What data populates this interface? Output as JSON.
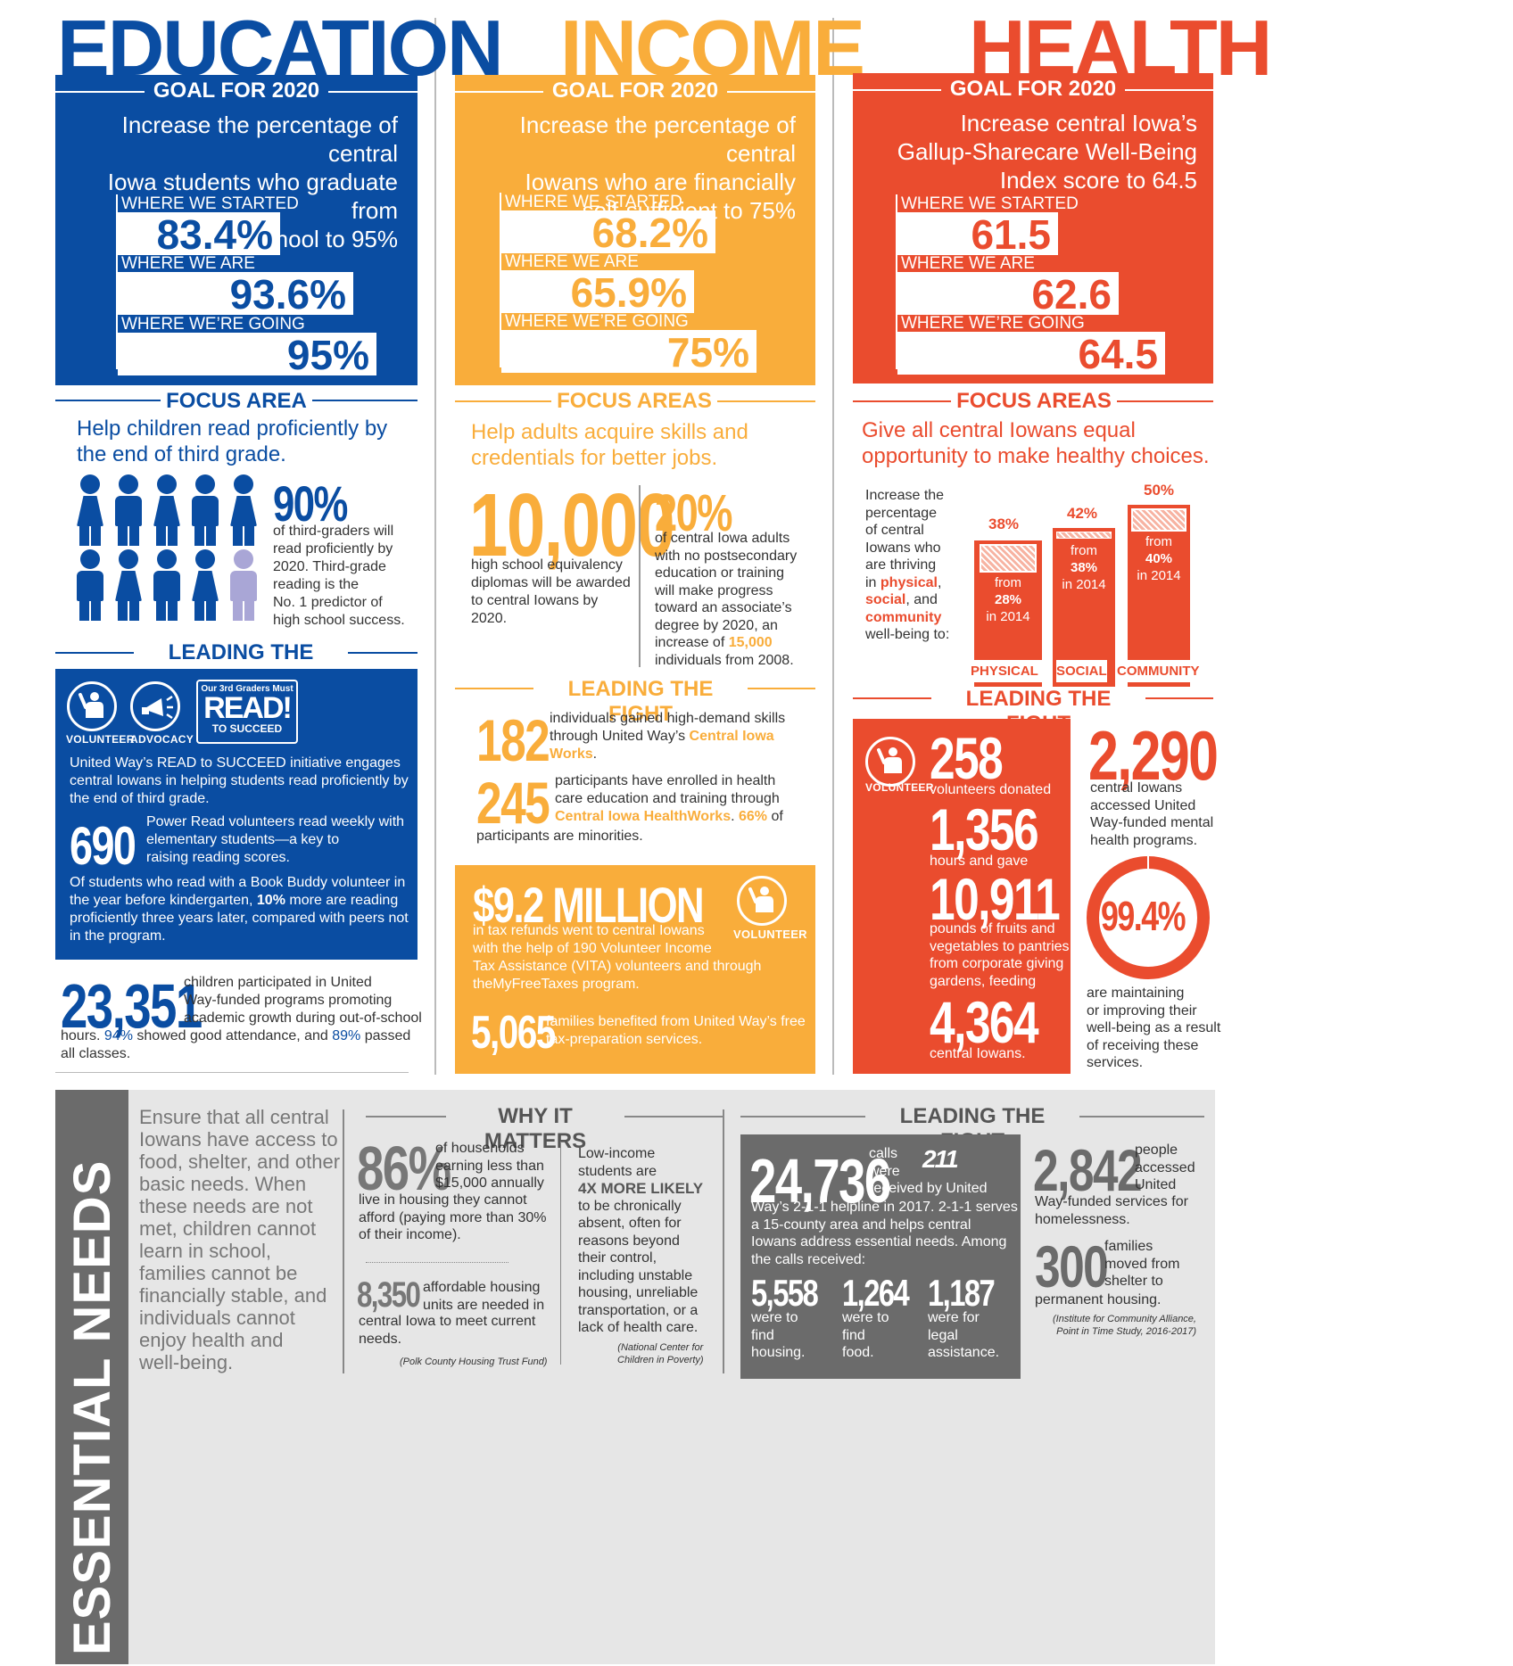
{
  "education": {
    "title": "EDUCATION",
    "goal_label": "GOAL FOR 2020",
    "goal_text": [
      "Increase the percentage of central",
      "Iowa students who graduate from",
      "high school to 95%"
    ],
    "stats": [
      {
        "label": "WHERE WE STARTED",
        "value": "83.4%"
      },
      {
        "label": "WHERE WE ARE",
        "value": "93.6%"
      },
      {
        "label": "WHERE WE’RE GOING",
        "value": "95%"
      }
    ],
    "focus_label": "FOCUS AREA",
    "focus_text": [
      "Help children read proficiently by",
      "the end of third grade."
    ],
    "reading_pct": "90%",
    "reading_text": [
      "of third-graders will",
      "read proficiently by",
      "2020. Third-grade",
      "reading is the",
      "No. 1 predictor of",
      "high school success."
    ],
    "leading_label": "LEADING THE FIGHT",
    "volunteer_caption": "VOLUNTEER",
    "advocacy_caption": "ADVOCACY",
    "read_logo_small": "Our 3rd Graders Must",
    "read_logo_big": "READ!",
    "read_logo_sub": "TO SUCCEED",
    "initiative_text": [
      "United Way’s READ to SUCCEED initiative engages",
      "central Iowans in helping students read proficiently by",
      "the end of third grade."
    ],
    "volunteers_num": "690",
    "volunteers_text": [
      "Power Read volunteers read weekly with",
      "elementary students—a key to",
      "raising reading scores."
    ],
    "buddy_text_1": "Of students who read with a Book Buddy volunteer in",
    "buddy_text_2a": "the year before kindergarten, ",
    "buddy_text_2b": "10%",
    "buddy_text_2c": " more are reading",
    "buddy_text_3": "proficiently three years later, compared with peers not",
    "buddy_text_4": "in the program.",
    "children_num": "23,351",
    "children_text": [
      "children participated in United",
      "Way-funded programs promoting",
      "academic growth during out-of-school"
    ],
    "children_tail_a": "hours. ",
    "children_tail_b": "94%",
    "children_tail_c": " showed good attendance, and ",
    "children_tail_d": "89%",
    "children_tail_e": " passed",
    "children_tail_2": "all classes."
  },
  "income": {
    "title": "INCOME",
    "goal_label": "GOAL FOR 2020",
    "goal_text": [
      "Increase the percentage of central",
      "Iowans who are financially",
      "self-sufficient to 75%"
    ],
    "stats": [
      {
        "label": "WHERE WE STARTED",
        "value": "68.2%"
      },
      {
        "label": "WHERE WE ARE",
        "value": "65.9%"
      },
      {
        "label": "WHERE WE’RE GOING",
        "value": "75%"
      }
    ],
    "focus_label": "FOCUS AREAS",
    "focus_text": [
      "Help adults acquire skills and",
      "credentials for better jobs."
    ],
    "diplomas_num": "10,000",
    "diplomas_text": [
      "high school equivalency",
      "diplomas will be awarded",
      "to central Iowans by",
      "2020."
    ],
    "adults_pct": "20%",
    "adults_text": [
      "of central Iowa adults",
      "with no postsecondary",
      "education or training",
      "will make progress",
      "toward an associate’s",
      "degree by 2020, an"
    ],
    "adults_inc_a": "increase of ",
    "adults_inc_b": "15,000",
    "adults_tail": "individuals from 2008.",
    "leading_label": "LEADING THE FIGHT",
    "skills_num": "182",
    "skills_text_1": "individuals gained high-demand skills",
    "skills_text_2a": "through United Way’s ",
    "skills_text_2b": "Central Iowa",
    "skills_text_3": "Works",
    "hc_num": "245",
    "hc_text_1": "participants have enrolled in health",
    "hc_text_2": "care education and training through",
    "hc_text_3a": "Central Iowa HealthWorks",
    "hc_text_3b": ". ",
    "hc_text_3c": "66%",
    "hc_text_3d": " of",
    "hc_text_4": "participants are minorities.",
    "tax_num": "$9.2 MILLION",
    "tax_text": [
      "in tax refunds went to central Iowans",
      "with the help of 190 Volunteer Income",
      "Tax Assistance (VITA) volunteers and through",
      "theMyFreeTaxes program."
    ],
    "volunteer_caption": "VOLUNTEER",
    "families_num": "5,065",
    "families_text": [
      "families benefited from United Way’s free",
      "tax-preparation services."
    ]
  },
  "health": {
    "title": "HEALTH",
    "goal_label": "GOAL FOR 2020",
    "goal_text": [
      "Increase central Iowa’s",
      "Gallup-Sharecare Well-Being",
      "Index score to 64.5"
    ],
    "stats": [
      {
        "label": "WHERE WE STARTED",
        "value": "61.5"
      },
      {
        "label": "WHERE WE ARE",
        "value": "62.6"
      },
      {
        "label": "WHERE WE’RE GOING",
        "value": "64.5"
      }
    ],
    "focus_label": "FOCUS AREAS",
    "focus_text": [
      "Give all central Iowans equal",
      "opportunity to make healthy choices."
    ],
    "thriving_text": [
      "Increase the",
      "percentage",
      "of central",
      "Iowans who",
      "are thriving"
    ],
    "thriving_in": "in ",
    "thriving_physical": "physical",
    "thriving_social": "social",
    "thriving_and": ", and",
    "thriving_community": "community",
    "thriving_tail": "well-being to:",
    "bars": [
      {
        "name": "PHYSICAL",
        "target": "38%",
        "from_label": "from",
        "from_value": "28%",
        "year": "in 2014"
      },
      {
        "name": "SOCIAL",
        "target": "42%",
        "from_label": "from",
        "from_value": "38%",
        "year": "in 2014"
      },
      {
        "name": "COMMUNITY",
        "target": "50%",
        "from_label": "from",
        "from_value": "40%",
        "year": "in 2014"
      }
    ],
    "leading_label": "LEADING THE FIGHT",
    "volunteer_caption": "VOLUNTEER",
    "vol_num": "258",
    "vol_text": "volunteers donated",
    "hours_num": "1,356",
    "hours_text": "hours and gave",
    "pounds_num": "10,911",
    "pounds_text": [
      "pounds of fruits and",
      "vegetables to pantries",
      "from corporate giving",
      "gardens, feeding"
    ],
    "fed_num": "4,364",
    "fed_text": "central Iowans.",
    "mental_num": "2,290",
    "mental_text": [
      "central Iowans",
      "accessed United",
      "Way-funded mental",
      "health programs."
    ],
    "ring_value": "99.4%",
    "ring_text": [
      "are maintaining",
      "or improving their",
      "well-being as a result",
      "of receiving these",
      "services."
    ]
  },
  "essential": {
    "title": "ESSENTIAL NEEDS",
    "intro": [
      "Ensure that all central",
      "Iowans have access to",
      "food, shelter, and other",
      "basic needs. When",
      "these needs are not",
      "met, children cannot",
      "learn in school,",
      "families cannot be",
      "financially stable, and",
      "individuals cannot",
      "enjoy health and",
      "well-being."
    ],
    "why_label": "WHY IT MATTERS",
    "house_pct": "86%",
    "house_text_a": [
      "of households",
      "earning less than",
      "$15,000 annually"
    ],
    "house_text_b": [
      "live in housing they cannot",
      "afford (paying more than 30%",
      "of their income)."
    ],
    "units_num": "8,350",
    "units_text_a": [
      "affordable housing",
      "units are needed in"
    ],
    "units_text_b": [
      "central Iowa to meet current",
      "needs."
    ],
    "units_source": "(Polk County Housing Trust Fund)",
    "lowinc_text_a": [
      "Low-income",
      "students are"
    ],
    "lowinc_bold": "4X MORE LIKELY",
    "lowinc_text_b": [
      "to be chronically",
      "absent, often for",
      "reasons beyond",
      "their control,",
      "including unstable",
      "housing, unreliable",
      "transportation, or a",
      "lack of health care."
    ],
    "lowinc_source": [
      "(National Center for",
      "Children in Poverty)"
    ],
    "leading_label": "LEADING THE FIGHT",
    "calls_num": "24,736",
    "calls_text_a": [
      "calls",
      "were",
      "received by United"
    ],
    "calls_logo": "211",
    "calls_text_b": [
      "Way’s 2-1-1 helpline in 2017. 2-1-1 serves",
      "a 15-county area and helps central",
      "Iowans address essential needs. Among",
      "the calls received:"
    ],
    "sub": [
      {
        "num": "5,558",
        "text": [
          "were to",
          "find",
          "housing."
        ]
      },
      {
        "num": "1,264",
        "text": [
          "were to",
          "find",
          "food."
        ]
      },
      {
        "num": "1,187",
        "text": [
          "were for",
          "legal",
          "assistance."
        ]
      }
    ],
    "homeless_num": "2,842",
    "homeless_text_a": [
      "people",
      "accessed",
      "United"
    ],
    "homeless_text_b": [
      "Way-funded services for",
      "homelessness."
    ],
    "moved_num": "300",
    "moved_text_a": [
      "families",
      "moved from",
      "shelter to"
    ],
    "moved_text_b": "permanent housing.",
    "moved_source": [
      "(Institute for Community Alliance,",
      "Point in Time Study, 2016-2017)"
    ]
  },
  "colors": {
    "blue": "#0a4da2",
    "yellow": "#f9ad3b",
    "red": "#ea4c2e",
    "gray": "#6b6b6b",
    "lightgray": "#e6e6e6"
  }
}
